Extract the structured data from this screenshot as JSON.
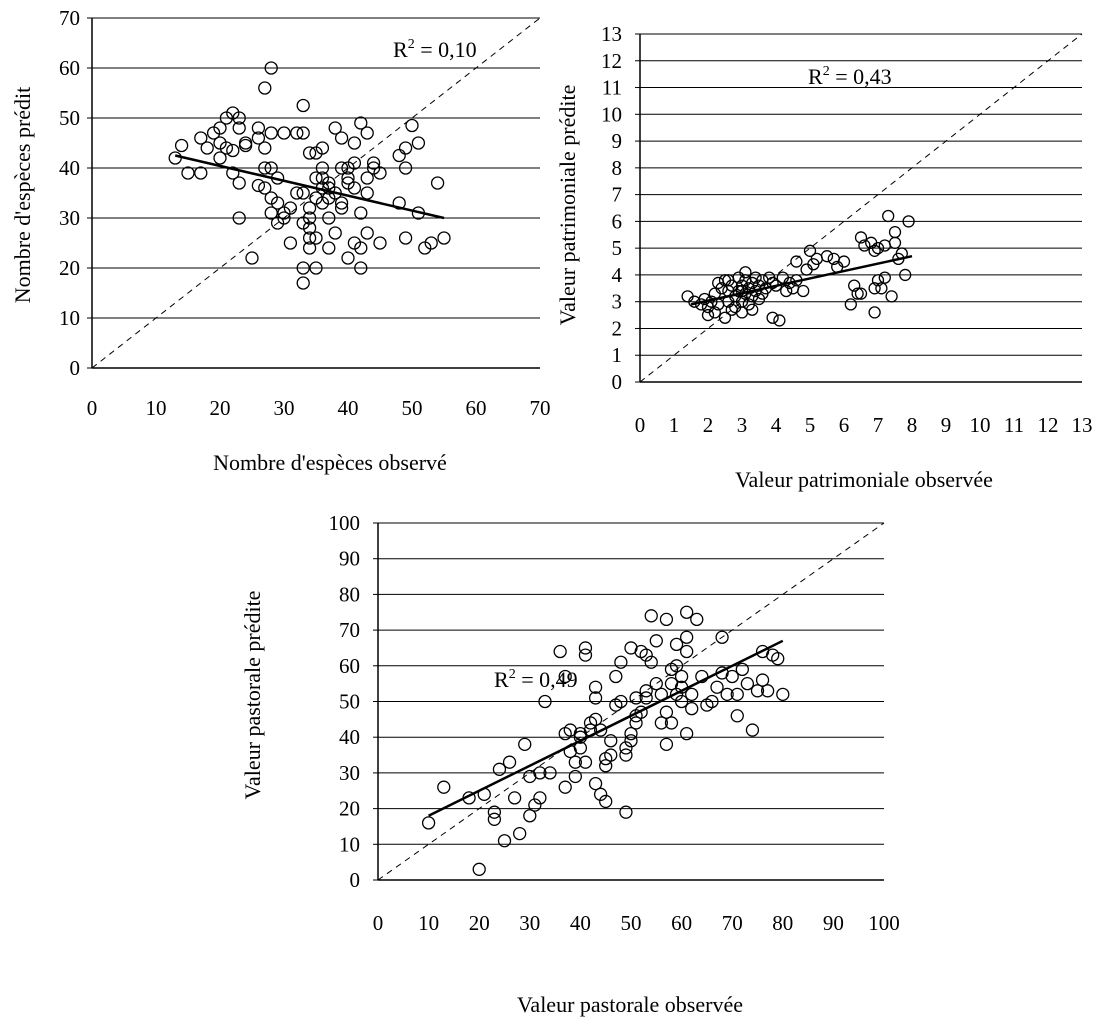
{
  "chart_data": [
    {
      "type": "scatter",
      "xlabel": "Nombre d'espèces observé",
      "ylabel": "Nombre d'espèces prédit",
      "xlim": [
        0,
        70
      ],
      "ylim": [
        0,
        70
      ],
      "xticks": [
        0,
        10,
        20,
        30,
        40,
        50,
        60,
        70
      ],
      "yticks": [
        0,
        10,
        20,
        30,
        40,
        50,
        60,
        70
      ],
      "grid": "horizontal",
      "identity_line": true,
      "r2_label": "R",
      "r2_sup": "2",
      "r2_value": " = 0,10",
      "fit_line": [
        [
          13,
          42.5
        ],
        [
          55,
          30
        ]
      ],
      "points": [
        [
          13,
          42
        ],
        [
          14,
          44.5
        ],
        [
          15,
          39
        ],
        [
          17,
          46
        ],
        [
          17,
          39
        ],
        [
          18,
          44
        ],
        [
          19,
          47
        ],
        [
          20,
          42
        ],
        [
          20,
          48
        ],
        [
          20,
          45
        ],
        [
          21,
          44
        ],
        [
          21,
          50
        ],
        [
          22,
          51
        ],
        [
          22,
          39
        ],
        [
          22,
          43.5
        ],
        [
          23,
          50
        ],
        [
          23,
          48
        ],
        [
          23,
          37
        ],
        [
          23,
          30
        ],
        [
          24,
          45
        ],
        [
          25,
          22
        ],
        [
          26,
          46
        ],
        [
          26,
          48
        ],
        [
          27,
          40
        ],
        [
          27,
          36
        ],
        [
          27,
          44
        ],
        [
          27,
          56
        ],
        [
          28,
          60
        ],
        [
          28,
          47
        ],
        [
          28,
          40
        ],
        [
          28,
          34
        ],
        [
          28,
          31
        ],
        [
          29,
          38
        ],
        [
          29,
          29
        ],
        [
          29,
          33
        ],
        [
          30,
          30
        ],
        [
          30,
          47
        ],
        [
          31,
          25
        ],
        [
          31,
          32
        ],
        [
          32,
          47
        ],
        [
          33,
          52.5
        ],
        [
          33,
          29
        ],
        [
          33,
          35
        ],
        [
          33,
          47
        ],
        [
          33,
          20
        ],
        [
          33,
          17
        ],
        [
          34,
          24
        ],
        [
          34,
          26
        ],
        [
          34,
          30
        ],
        [
          34,
          28
        ],
        [
          34,
          32
        ],
        [
          34,
          43
        ],
        [
          35,
          43
        ],
        [
          35,
          38
        ],
        [
          35,
          34
        ],
        [
          35,
          20
        ],
        [
          35,
          26
        ],
        [
          36,
          40
        ],
        [
          36,
          33
        ],
        [
          36,
          36
        ],
        [
          36,
          44
        ],
        [
          36,
          38
        ],
        [
          37,
          24
        ],
        [
          37,
          34
        ],
        [
          37,
          37
        ],
        [
          37,
          30
        ],
        [
          38,
          35
        ],
        [
          38,
          48
        ],
        [
          38,
          27
        ],
        [
          39,
          33
        ],
        [
          39,
          32
        ],
        [
          39,
          40
        ],
        [
          39,
          46
        ],
        [
          40,
          40
        ],
        [
          40,
          38
        ],
        [
          40,
          37
        ],
        [
          40,
          22
        ],
        [
          41,
          25
        ],
        [
          41,
          41
        ],
        [
          41,
          36
        ],
        [
          41,
          45
        ],
        [
          42,
          31
        ],
        [
          42,
          24
        ],
        [
          42,
          49
        ],
        [
          42,
          20
        ],
        [
          43,
          27
        ],
        [
          43,
          38
        ],
        [
          43,
          47
        ],
        [
          43,
          35
        ],
        [
          44,
          41
        ],
        [
          44,
          40
        ],
        [
          45,
          39
        ],
        [
          45,
          25
        ],
        [
          48,
          33
        ],
        [
          48,
          42.5
        ],
        [
          49,
          40
        ],
        [
          49,
          26
        ],
        [
          49,
          44
        ],
        [
          50,
          48.5
        ],
        [
          51,
          31
        ],
        [
          51,
          45
        ],
        [
          52,
          24
        ],
        [
          53,
          25
        ],
        [
          54,
          37
        ],
        [
          55,
          26
        ],
        [
          30,
          31
        ],
        [
          37,
          36
        ],
        [
          26,
          36.5
        ],
        [
          24,
          44.5
        ],
        [
          32,
          35
        ]
      ]
    },
    {
      "type": "scatter",
      "xlabel": "Valeur patrimoniale  observée",
      "ylabel": "Valeur patrimoniale prédite",
      "xlim": [
        0,
        13
      ],
      "ylim": [
        0,
        13
      ],
      "xticks": [
        0,
        1,
        2,
        3,
        4,
        5,
        6,
        7,
        8,
        9,
        10,
        11,
        12,
        13
      ],
      "yticks": [
        0,
        1,
        2,
        3,
        4,
        5,
        6,
        7,
        8,
        9,
        10,
        11,
        12,
        13
      ],
      "grid": "horizontal",
      "identity_line": true,
      "r2_label": "R",
      "r2_sup": "2",
      "r2_value": " = 0,43",
      "fit_line": [
        [
          1.5,
          2.9
        ],
        [
          8,
          4.7
        ]
      ],
      "points": [
        [
          1.4,
          3.2
        ],
        [
          1.6,
          3.0
        ],
        [
          1.8,
          2.9
        ],
        [
          1.9,
          3.1
        ],
        [
          2.0,
          2.5
        ],
        [
          2.0,
          2.8
        ],
        [
          2.1,
          3.0
        ],
        [
          2.2,
          2.6
        ],
        [
          2.2,
          3.3
        ],
        [
          2.3,
          3.7
        ],
        [
          2.3,
          2.9
        ],
        [
          2.4,
          3.5
        ],
        [
          2.5,
          3.8
        ],
        [
          2.5,
          2.4
        ],
        [
          2.6,
          3.0
        ],
        [
          2.6,
          3.4
        ],
        [
          2.7,
          2.7
        ],
        [
          2.7,
          3.6
        ],
        [
          2.8,
          3.2
        ],
        [
          2.8,
          2.8
        ],
        [
          2.9,
          3.9
        ],
        [
          2.9,
          3.4
        ],
        [
          3.0,
          3.6
        ],
        [
          3.0,
          3.0
        ],
        [
          3.0,
          2.6
        ],
        [
          3.1,
          4.1
        ],
        [
          3.1,
          3.3
        ],
        [
          3.1,
          3.8
        ],
        [
          3.2,
          3.5
        ],
        [
          3.2,
          2.9
        ],
        [
          3.3,
          3.7
        ],
        [
          3.3,
          3.2
        ],
        [
          3.3,
          2.7
        ],
        [
          3.4,
          3.9
        ],
        [
          3.4,
          3.4
        ],
        [
          3.5,
          3.6
        ],
        [
          3.5,
          3.1
        ],
        [
          3.6,
          3.8
        ],
        [
          3.6,
          3.3
        ],
        [
          3.7,
          3.5
        ],
        [
          3.8,
          3.9
        ],
        [
          3.9,
          3.7
        ],
        [
          3.9,
          2.4
        ],
        [
          4.0,
          3.6
        ],
        [
          4.1,
          2.3
        ],
        [
          4.2,
          3.9
        ],
        [
          4.3,
          3.4
        ],
        [
          4.4,
          3.7
        ],
        [
          4.5,
          3.5
        ],
        [
          4.6,
          4.5
        ],
        [
          4.6,
          3.8
        ],
        [
          4.8,
          3.4
        ],
        [
          4.9,
          4.2
        ],
        [
          5.0,
          4.9
        ],
        [
          5.1,
          4.4
        ],
        [
          5.2,
          4.6
        ],
        [
          5.5,
          4.7
        ],
        [
          5.7,
          4.6
        ],
        [
          5.8,
          4.3
        ],
        [
          6.0,
          4.5
        ],
        [
          6.2,
          2.9
        ],
        [
          6.3,
          3.6
        ],
        [
          6.4,
          3.3
        ],
        [
          6.5,
          5.4
        ],
        [
          6.5,
          3.3
        ],
        [
          6.6,
          5.1
        ],
        [
          6.8,
          5.2
        ],
        [
          6.9,
          2.6
        ],
        [
          6.9,
          3.5
        ],
        [
          7.0,
          3.8
        ],
        [
          7.0,
          5.0
        ],
        [
          7.1,
          3.5
        ],
        [
          7.2,
          3.9
        ],
        [
          7.2,
          5.1
        ],
        [
          7.3,
          6.2
        ],
        [
          7.4,
          3.2
        ],
        [
          7.5,
          5.6
        ],
        [
          7.5,
          5.2
        ],
        [
          7.6,
          4.6
        ],
        [
          7.7,
          4.8
        ],
        [
          7.8,
          4.0
        ],
        [
          7.9,
          6.0
        ],
        [
          6.9,
          4.9
        ],
        [
          3.0,
          3.4
        ],
        [
          2.6,
          3.8
        ]
      ]
    },
    {
      "type": "scatter",
      "xlabel": "Valeur pastorale  observée",
      "ylabel": "Valeur pastorale prédite",
      "xlim": [
        0,
        100
      ],
      "ylim": [
        0,
        100
      ],
      "xticks": [
        0,
        10,
        20,
        30,
        40,
        50,
        60,
        70,
        80,
        90,
        100
      ],
      "yticks": [
        0,
        10,
        20,
        30,
        40,
        50,
        60,
        70,
        80,
        90,
        100
      ],
      "grid": "horizontal",
      "identity_line": true,
      "r2_label": "R",
      "r2_sup": "2",
      "r2_value": " = 0,49",
      "fit_line": [
        [
          10,
          18
        ],
        [
          80,
          67
        ]
      ],
      "points": [
        [
          10,
          16
        ],
        [
          13,
          26
        ],
        [
          18,
          23
        ],
        [
          20,
          3
        ],
        [
          21,
          24
        ],
        [
          23,
          19
        ],
        [
          23,
          17
        ],
        [
          24,
          31
        ],
        [
          25,
          11
        ],
        [
          26,
          33
        ],
        [
          27,
          23
        ],
        [
          28,
          13
        ],
        [
          29,
          38
        ],
        [
          30,
          18
        ],
        [
          30,
          29
        ],
        [
          31,
          21
        ],
        [
          32,
          30
        ],
        [
          32,
          23
        ],
        [
          33,
          50
        ],
        [
          34,
          30
        ],
        [
          36,
          64
        ],
        [
          37,
          57
        ],
        [
          37,
          41
        ],
        [
          37,
          26
        ],
        [
          38,
          36
        ],
        [
          38,
          42
        ],
        [
          39,
          29
        ],
        [
          39,
          33
        ],
        [
          40,
          41
        ],
        [
          40,
          37
        ],
        [
          40,
          40
        ],
        [
          41,
          33
        ],
        [
          41,
          65
        ],
        [
          41,
          63
        ],
        [
          42,
          42
        ],
        [
          42,
          44
        ],
        [
          43,
          45
        ],
        [
          43,
          54
        ],
        [
          43,
          51
        ],
        [
          43,
          27
        ],
        [
          44,
          24
        ],
        [
          44,
          42
        ],
        [
          45,
          22
        ],
        [
          45,
          32
        ],
        [
          45,
          34
        ],
        [
          46,
          35
        ],
        [
          46,
          39
        ],
        [
          47,
          49
        ],
        [
          47,
          57
        ],
        [
          48,
          61
        ],
        [
          48,
          50
        ],
        [
          49,
          19
        ],
        [
          49,
          37
        ],
        [
          50,
          39
        ],
        [
          50,
          65
        ],
        [
          50,
          41
        ],
        [
          51,
          46
        ],
        [
          51,
          51
        ],
        [
          51,
          44
        ],
        [
          52,
          64
        ],
        [
          52,
          47
        ],
        [
          53,
          53
        ],
        [
          53,
          51
        ],
        [
          53,
          63
        ],
        [
          54,
          74
        ],
        [
          54,
          61
        ],
        [
          55,
          67
        ],
        [
          55,
          55
        ],
        [
          56,
          44
        ],
        [
          56,
          52
        ],
        [
          57,
          38
        ],
        [
          57,
          47
        ],
        [
          57,
          73
        ],
        [
          58,
          59
        ],
        [
          58,
          55
        ],
        [
          58,
          44
        ],
        [
          59,
          60
        ],
        [
          59,
          52
        ],
        [
          59,
          66
        ],
        [
          60,
          50
        ],
        [
          60,
          54
        ],
        [
          60,
          57
        ],
        [
          61,
          41
        ],
        [
          61,
          64
        ],
        [
          61,
          75
        ],
        [
          61,
          68
        ],
        [
          62,
          52
        ],
        [
          62,
          48
        ],
        [
          63,
          73
        ],
        [
          64,
          57
        ],
        [
          65,
          49
        ],
        [
          67,
          54
        ],
        [
          68,
          68
        ],
        [
          68,
          58
        ],
        [
          69,
          52
        ],
        [
          70,
          57
        ],
        [
          71,
          46
        ],
        [
          71,
          52
        ],
        [
          72,
          59
        ],
        [
          73,
          55
        ],
        [
          74,
          42
        ],
        [
          75,
          53
        ],
        [
          76,
          64
        ],
        [
          77,
          53
        ],
        [
          78,
          63
        ],
        [
          79,
          62
        ],
        [
          80,
          52
        ],
        [
          76,
          56
        ],
        [
          66,
          50
        ],
        [
          49,
          35
        ]
      ]
    }
  ]
}
